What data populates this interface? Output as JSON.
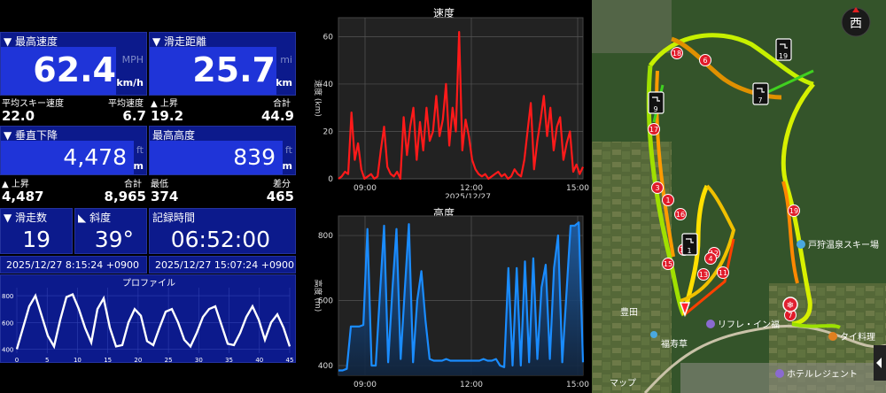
{
  "stats": {
    "max_speed": {
      "label": "▼ 最高速度",
      "value": "62.4",
      "unit_top": "MPH",
      "unit": "km/h"
    },
    "distance": {
      "label": "▼ 滑走距離",
      "value": "25.7",
      "unit_top": "mi",
      "unit": "km"
    },
    "avg_ski_speed": {
      "label": "平均スキー速度",
      "value": "22.0"
    },
    "avg_speed": {
      "label": "平均速度",
      "value": "6.7"
    },
    "ascent_dist": {
      "label": "▲ 上昇",
      "value": "19.2"
    },
    "total_dist": {
      "label": "合計",
      "value": "44.9"
    },
    "vertical_descent": {
      "label": "▼ 垂直下降",
      "value": "4,478",
      "unit_top": "ft",
      "unit": "m"
    },
    "max_altitude": {
      "label": "最高高度",
      "value": "839",
      "unit_top": "ft",
      "unit": "m"
    },
    "ascent_vert": {
      "label": "▲ 上昇",
      "value": "4,487"
    },
    "total_vert": {
      "label": "合計",
      "value": "8,965"
    },
    "min_altitude": {
      "label": "最低",
      "value": "374"
    },
    "diff_altitude": {
      "label": "差分",
      "value": "465"
    },
    "runs": {
      "label": "▼ 滑走数",
      "value": "19"
    },
    "slope": {
      "label": "斜度",
      "value": "39°"
    },
    "duration": {
      "label": "記録時間",
      "value": "06:52:00"
    },
    "start_time": "2025/12/27 8:15:24 +0900",
    "end_time": "2025/12/27 15:07:24 +0900"
  },
  "profile": {
    "title": "プロファイル",
    "yticks": [
      "400",
      "600",
      "800"
    ],
    "xticks": [
      "0",
      "5",
      "10",
      "15",
      "20",
      "25",
      "30",
      "35",
      "40",
      "45"
    ]
  },
  "speed_chart": {
    "title": "速度",
    "ylabel": "速度 (km)",
    "yticks": [
      "0",
      "20",
      "40",
      "60"
    ],
    "xticks": [
      "09:00",
      "12:00",
      "15:00"
    ],
    "date": "2025/12/27",
    "color": "#ff1a1a"
  },
  "altitude_chart": {
    "title": "高度",
    "ylabel": "高度 (m)",
    "yticks": [
      "400",
      "600",
      "800"
    ],
    "xticks": [
      "09:00",
      "12:00",
      "15:00"
    ],
    "color": "#1a8cff"
  },
  "map": {
    "compass": "西",
    "resort_label": "戸狩温泉スキー場",
    "place_toyota": "豊田",
    "place_reflet": "リフレ・イン福",
    "place_fukuju": "福寿草",
    "place_tairyori": "タイ料理",
    "place_hotel": "ホテルレジェント",
    "attribution": "マップ",
    "run_markers": [
      "18",
      "6",
      "17",
      "3",
      "1",
      "16",
      "15",
      "14",
      "13",
      "12",
      "11",
      "4",
      "19",
      "7"
    ],
    "lift_markers": [
      "19",
      "9",
      "7",
      "1"
    ]
  },
  "chart_data": [
    {
      "type": "line",
      "title": "プロファイル",
      "xlabel": "",
      "ylabel": "",
      "ylim": [
        370,
        860
      ],
      "xlim": [
        0,
        45
      ],
      "series": [
        {
          "values": [
            400,
            560,
            720,
            800,
            650,
            500,
            420,
            620,
            790,
            810,
            700,
            560,
            450,
            700,
            780,
            560,
            420,
            430,
            600,
            700,
            650,
            460,
            430,
            560,
            680,
            700,
            600,
            470,
            420,
            520,
            640,
            700,
            720,
            580,
            440,
            430,
            520,
            640,
            720,
            620,
            470,
            600,
            660,
            560,
            420
          ]
        }
      ]
    },
    {
      "type": "line",
      "title": "速度",
      "xlabel": "",
      "ylabel": "速度 (km)",
      "x_domain": [
        "08:15",
        "15:07"
      ],
      "ylim": [
        0,
        68
      ],
      "series": [
        {
          "name": "速度",
          "color": "#ff1a1a",
          "values": [
            0,
            1,
            3,
            2,
            28,
            8,
            15,
            4,
            0,
            1,
            2,
            0,
            1,
            12,
            22,
            5,
            2,
            1,
            3,
            0,
            26,
            10,
            22,
            30,
            8,
            24,
            12,
            30,
            16,
            20,
            35,
            18,
            25,
            40,
            14,
            30,
            20,
            62,
            12,
            25,
            18,
            8,
            4,
            2,
            1,
            2,
            0,
            1,
            2,
            3,
            1,
            2,
            0,
            1,
            4,
            2,
            1,
            8,
            20,
            32,
            4,
            16,
            25,
            35,
            18,
            30,
            12,
            22,
            26,
            8,
            15,
            20,
            3,
            6,
            2,
            5
          ]
        }
      ]
    },
    {
      "type": "line",
      "title": "高度",
      "xlabel": "",
      "ylabel": "高度 (m)",
      "x_domain": [
        "08:15",
        "15:07"
      ],
      "ylim": [
        370,
        860
      ],
      "series": [
        {
          "name": "高度",
          "color": "#1a8cff",
          "values": [
            385,
            385,
            390,
            520,
            520,
            520,
            525,
            820,
            400,
            400,
            620,
            830,
            410,
            630,
            820,
            420,
            630,
            835,
            410,
            600,
            690,
            540,
            420,
            415,
            415,
            415,
            420,
            415,
            415,
            415,
            415,
            415,
            415,
            415,
            415,
            420,
            415,
            415,
            420,
            400,
            395,
            700,
            400,
            700,
            400,
            720,
            410,
            730,
            420,
            640,
            710,
            420,
            700,
            800,
            410,
            620,
            830,
            830,
            840,
            410
          ]
        }
      ]
    }
  ]
}
